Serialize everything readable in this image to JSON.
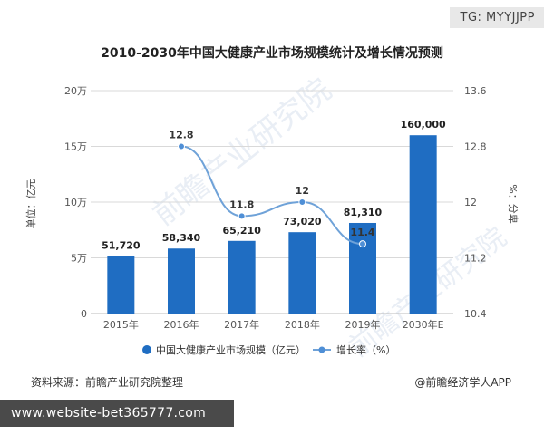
{
  "tag": "TG: MYYJJPP",
  "title": "2010-2030年中国大健康产业市场规模统计及增长情况预测",
  "source_left": "资料来源：前瞻产业研究院整理",
  "source_right": "@前瞻经济学人APP",
  "banner": "www.website-bet365777.com",
  "watermark": "前瞻产业研究院",
  "colors": {
    "bar": "#1f6dc2",
    "line": "#6fa2d8",
    "point": "#4f8fd6",
    "grid": "#d9d9d9",
    "axis_text": "#555555"
  },
  "chart_data": {
    "type": "bar",
    "categories": [
      "2015年",
      "2016年",
      "2017年",
      "2018年",
      "2019年",
      "2030年E"
    ],
    "series": [
      {
        "name": "中国大健康产业市场规模（亿元）",
        "type": "bar",
        "axis": "left",
        "values": [
          51720,
          58340,
          65210,
          73020,
          81310,
          160000
        ],
        "labels": [
          "51,720",
          "58,340",
          "65,210",
          "73,020",
          "81,310",
          "160,000"
        ]
      },
      {
        "name": "增长率（%）",
        "type": "line",
        "axis": "right",
        "values": [
          null,
          12.8,
          11.8,
          12,
          11.4,
          null
        ],
        "labels": [
          "",
          "12.8",
          "11.8",
          "12",
          "11.4",
          ""
        ]
      }
    ],
    "ylabel_left": "单位：亿元",
    "ylabel_right": "%：分卑",
    "ylim_left": [
      0,
      200000
    ],
    "yticks_left": [
      "0",
      "5万",
      "10万",
      "15万",
      "20万"
    ],
    "ylim_right": [
      10.4,
      13.6
    ],
    "yticks_right": [
      "10.4",
      "11.2",
      "12",
      "12.8",
      "13.6"
    ],
    "legend_position": "bottom",
    "grid": true
  }
}
